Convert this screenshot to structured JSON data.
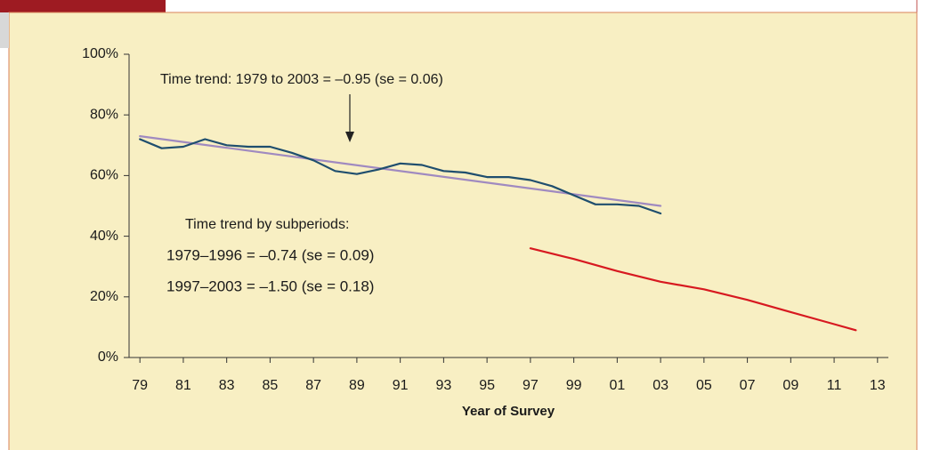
{
  "chart_data": {
    "type": "line",
    "annotations": [
      "Time trend: 1979 to 2003 = –0.95 (se = 0.06)",
      "Time trend by subperiods:",
      "1979–1996 = –0.74 (se = 0.09)",
      "1997–2003 = –1.50 (se = 0.18)"
    ],
    "x_label": "Year of Survey",
    "xlim": [
      1978.5,
      2013.5
    ],
    "xticks": [
      {
        "value": 1979,
        "label": "79"
      },
      {
        "value": 1981,
        "label": "81"
      },
      {
        "value": 1983,
        "label": "83"
      },
      {
        "value": 1985,
        "label": "85"
      },
      {
        "value": 1987,
        "label": "87"
      },
      {
        "value": 1989,
        "label": "89"
      },
      {
        "value": 1991,
        "label": "91"
      },
      {
        "value": 1993,
        "label": "93"
      },
      {
        "value": 1995,
        "label": "95"
      },
      {
        "value": 1997,
        "label": "97"
      },
      {
        "value": 1999,
        "label": "99"
      },
      {
        "value": 2001,
        "label": "01"
      },
      {
        "value": 2003,
        "label": "03"
      },
      {
        "value": 2005,
        "label": "05"
      },
      {
        "value": 2007,
        "label": "07"
      },
      {
        "value": 2009,
        "label": "09"
      },
      {
        "value": 2011,
        "label": "11"
      },
      {
        "value": 2013,
        "label": "13"
      }
    ],
    "ylim": [
      0,
      100
    ],
    "yticks": [
      {
        "value": 0,
        "label": "0%"
      },
      {
        "value": 20,
        "label": "20%"
      },
      {
        "value": 40,
        "label": "40%"
      },
      {
        "value": 60,
        "label": "60%"
      },
      {
        "value": 80,
        "label": "80%"
      },
      {
        "value": 100,
        "label": "100%"
      }
    ],
    "series": [
      {
        "color": "#1f4e6e",
        "x": [
          1979,
          1980,
          1981,
          1982,
          1983,
          1984,
          1985,
          1986,
          1987,
          1988,
          1989,
          1990,
          1991,
          1992,
          1993,
          1994,
          1995,
          1996,
          1997,
          1998,
          1999,
          2000,
          2001,
          2002,
          2003
        ],
        "values": [
          72,
          69,
          69.5,
          72,
          70,
          69.5,
          69.5,
          67.5,
          65,
          61.5,
          60.5,
          62,
          64,
          63.5,
          61.5,
          61,
          59.5,
          59.5,
          58.5,
          56.5,
          53.5,
          50.5,
          50.5,
          50,
          47.5
        ]
      },
      {
        "color": "#a08ac0",
        "x": [
          1979,
          2003
        ],
        "values": [
          73,
          50
        ]
      },
      {
        "color": "#d71920",
        "x": [
          1997,
          1999,
          2001,
          2003,
          2005,
          2007,
          2009,
          2011,
          2012
        ],
        "values": [
          36,
          32.5,
          28.5,
          25,
          22.5,
          19,
          15,
          11,
          9
        ]
      }
    ]
  }
}
